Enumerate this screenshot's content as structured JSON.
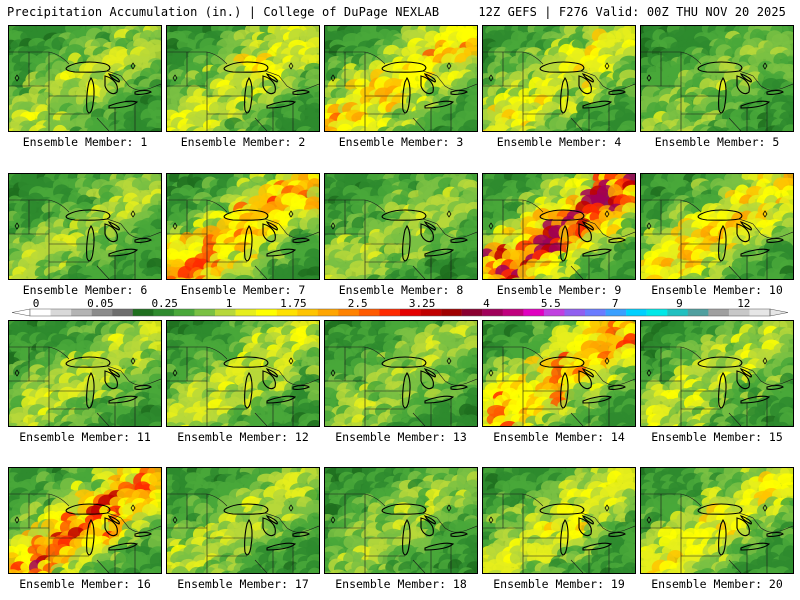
{
  "header": {
    "left": "Precipitation Accumulation (in.) | College of DuPage NEXLAB",
    "right": "12Z GEFS | F276 Valid: 00Z THU NOV 20 2025"
  },
  "colorbar": {
    "labels": [
      "0",
      "0.05",
      "0.25",
      "1",
      "1.75",
      "2.5",
      "3.25",
      "4",
      "5.5",
      "7",
      "9",
      "12"
    ],
    "colors": [
      "#ffffff",
      "#d9d9d9",
      "#b4b4b4",
      "#8c8c8c",
      "#6e6e6e",
      "#1f6f1f",
      "#2e8b2e",
      "#49a83a",
      "#7ac143",
      "#b7d83a",
      "#e6ee1c",
      "#ffff00",
      "#ffe100",
      "#ffc400",
      "#ffa500",
      "#ff8200",
      "#ff5a00",
      "#ff2a00",
      "#e40000",
      "#c00000",
      "#a00000",
      "#8a0030",
      "#a0005a",
      "#c0007e",
      "#e000c0",
      "#c040e0",
      "#9060f0",
      "#6a7cff",
      "#3aa0ff",
      "#00d0ff",
      "#00e8e8",
      "#20c0c0",
      "#50a0a0",
      "#a0a0a0",
      "#c8c8c8",
      "#e6e6e6"
    ]
  },
  "panels": [
    {
      "label": "Ensemble Member: 1",
      "wet": 0.45
    },
    {
      "label": "Ensemble Member: 2",
      "wet": 0.55
    },
    {
      "label": "Ensemble Member: 3",
      "wet": 0.7
    },
    {
      "label": "Ensemble Member: 4",
      "wet": 0.6
    },
    {
      "label": "Ensemble Member: 5",
      "wet": 0.35
    },
    {
      "label": "Ensemble Member: 6",
      "wet": 0.4
    },
    {
      "label": "Ensemble Member: 7",
      "wet": 0.75
    },
    {
      "label": "Ensemble Member: 8",
      "wet": 0.4
    },
    {
      "label": "Ensemble Member: 9",
      "wet": 0.85
    },
    {
      "label": "Ensemble Member: 10",
      "wet": 0.65
    },
    {
      "label": "Ensemble Member: 11",
      "wet": 0.45
    },
    {
      "label": "Ensemble Member: 12",
      "wet": 0.5
    },
    {
      "label": "Ensemble Member: 13",
      "wet": 0.4
    },
    {
      "label": "Ensemble Member: 14",
      "wet": 0.75
    },
    {
      "label": "Ensemble Member: 15",
      "wet": 0.5
    },
    {
      "label": "Ensemble Member: 16",
      "wet": 0.8
    },
    {
      "label": "Ensemble Member: 17",
      "wet": 0.45
    },
    {
      "label": "Ensemble Member: 18",
      "wet": 0.4
    },
    {
      "label": "Ensemble Member: 19",
      "wet": 0.55
    },
    {
      "label": "Ensemble Member: 20",
      "wet": 0.6
    }
  ]
}
